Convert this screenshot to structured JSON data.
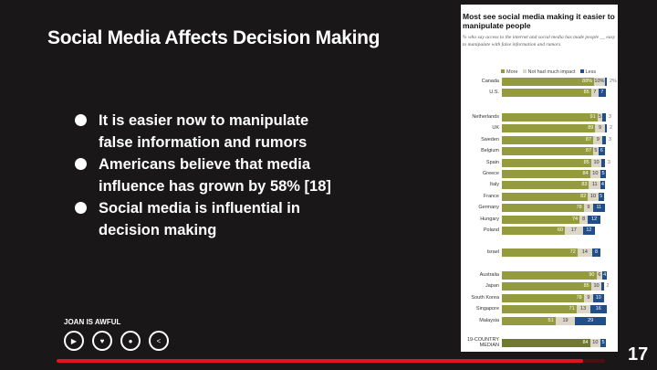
{
  "slide": {
    "title": "Social Media Affects Decision Making",
    "bullets": [
      "It is easier now to manipulate false information and rumors",
      "Americans believe that media influence has grown by 58% [18]",
      "Social media is influential in decision making"
    ],
    "page_number": "17"
  },
  "player": {
    "author": "JOAN IS AWFUL",
    "controls": [
      "play-icon",
      "heart-icon",
      "user-icon",
      "share-icon"
    ],
    "progress_percent": 96,
    "progress_color": "#e4141b"
  },
  "chart_data": {
    "type": "bar",
    "stacked": true,
    "orientation": "horizontal",
    "title": "Most see social media making it easier to manipulate people",
    "subtitle": "% who say access to the internet and social media has made people __ easy to manipulate with false information and rumors",
    "legend": [
      "More",
      "Not had much impact",
      "Less"
    ],
    "colors": {
      "More": "#939b3e",
      "Not had much impact": "#dcd6c8",
      "Less": "#1f4e89",
      "Median": "#6f7a2e"
    },
    "groups": [
      [
        {
          "c": "Canada",
          "v": [
            88,
            10,
            2
          ],
          "l": [
            "88%",
            "10%",
            "2%"
          ]
        },
        {
          "c": "U.S.",
          "v": [
            85,
            7,
            7
          ]
        }
      ],
      [
        {
          "c": "Netherlands",
          "v": [
            91,
            5,
            3
          ]
        },
        {
          "c": "UK",
          "v": [
            89,
            9,
            2
          ]
        },
        {
          "c": "Sweden",
          "v": [
            87,
            9,
            3
          ]
        },
        {
          "c": "Belgium",
          "v": [
            87,
            5,
            6
          ]
        },
        {
          "c": "Spain",
          "v": [
            85,
            10,
            3
          ]
        },
        {
          "c": "Greece",
          "v": [
            84,
            10,
            5
          ]
        },
        {
          "c": "Italy",
          "v": [
            83,
            11,
            4
          ]
        },
        {
          "c": "France",
          "v": [
            82,
            10,
            5
          ]
        },
        {
          "c": "Germany",
          "v": [
            78,
            9,
            11
          ]
        },
        {
          "c": "Hungary",
          "v": [
            74,
            8,
            12
          ]
        },
        {
          "c": "Poland",
          "v": [
            60,
            17,
            12
          ]
        }
      ],
      [
        {
          "c": "Israel",
          "v": [
            72,
            14,
            8
          ]
        }
      ],
      [
        {
          "c": "Australia",
          "v": [
            90,
            6,
            4
          ]
        },
        {
          "c": "Japan",
          "v": [
            85,
            10,
            2
          ]
        },
        {
          "c": "South Korea",
          "v": [
            78,
            9,
            10
          ]
        },
        {
          "c": "Singapore",
          "v": [
            71,
            13,
            16
          ]
        },
        {
          "c": "Malaysia",
          "v": [
            51,
            19,
            29
          ]
        }
      ],
      [
        {
          "c": "19-COUNTRY MEDIAN",
          "v": [
            84,
            10,
            5
          ],
          "median": true
        }
      ]
    ]
  }
}
